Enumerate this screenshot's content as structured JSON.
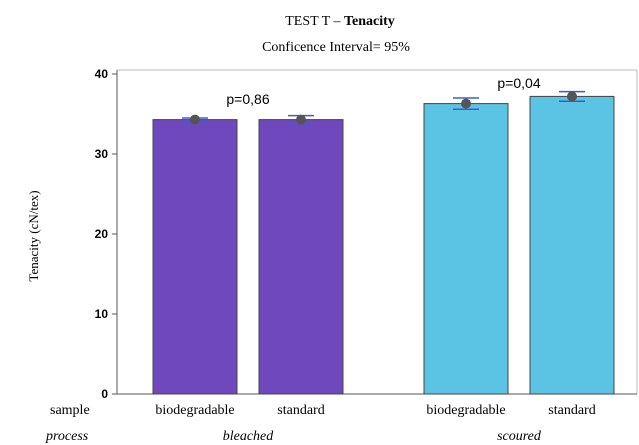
{
  "chart_data": {
    "type": "bar",
    "title_prefix": "TEST T – ",
    "title_bold": "Tenacity",
    "subtitle": "Conficence Interval= 95%",
    "ylabel": "Tenacity (cN/tex)",
    "ylim": [
      0,
      40
    ],
    "yticks": [
      0,
      10,
      20,
      30,
      40
    ],
    "grid": false,
    "row_labels": {
      "sample": "sample",
      "process": "process"
    },
    "groups": [
      {
        "process": "bleached",
        "color": "#7048be",
        "p_label": "p=0,86",
        "bars": [
          {
            "sample": "biodegradable",
            "value": 34.3,
            "ci_low": 34.0,
            "ci_high": 34.5
          },
          {
            "sample": "standard",
            "value": 34.3,
            "ci_low": 33.8,
            "ci_high": 34.8
          }
        ]
      },
      {
        "process": "scoured",
        "color": "#5bc3e3",
        "p_label": "p=0,04",
        "bars": [
          {
            "sample": "biodegradable",
            "value": 36.3,
            "ci_low": 35.6,
            "ci_high": 37.0
          },
          {
            "sample": "standard",
            "value": 37.2,
            "ci_low": 36.6,
            "ci_high": 37.8
          }
        ]
      }
    ],
    "colors": {
      "error_bar": "#3a5fcd",
      "mean_marker": "#555555",
      "bar_stroke": "#444444"
    }
  }
}
